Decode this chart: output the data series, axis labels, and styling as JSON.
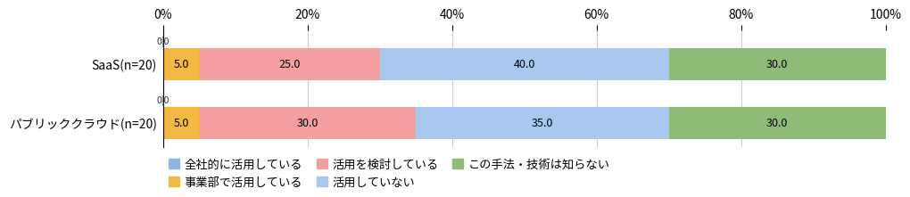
{
  "categories": [
    "SaaS(n=20)",
    "パブリッククラウド(n=20)"
  ],
  "series": [
    {
      "label": "全社的に活用している",
      "color": "#8db4e2",
      "values": [
        0.0,
        0.0
      ]
    },
    {
      "label": "事業部で活用している",
      "color": "#f4b942",
      "values": [
        5.0,
        5.0
      ]
    },
    {
      "label": "活用を検討している",
      "color": "#f4a0a0",
      "values": [
        25.0,
        30.0
      ]
    },
    {
      "label": "活用していない",
      "color": "#a8c8f0",
      "values": [
        40.0,
        35.0
      ]
    },
    {
      "label": "この手法・技術は知らない",
      "color": "#8fbb78",
      "values": [
        30.0,
        30.0
      ]
    }
  ],
  "xlim": [
    0,
    100
  ],
  "xticks": [
    0,
    20,
    40,
    60,
    80,
    100
  ],
  "xticklabels": [
    "0%",
    "20%",
    "40%",
    "60%",
    "80%",
    "100%"
  ],
  "bar_height": 0.55,
  "text_color": "#000000",
  "background_color": "#ffffff",
  "legend_fontsize": 9.5,
  "tick_fontsize": 10,
  "label_fontsize": 10,
  "value_fontsize": 9
}
